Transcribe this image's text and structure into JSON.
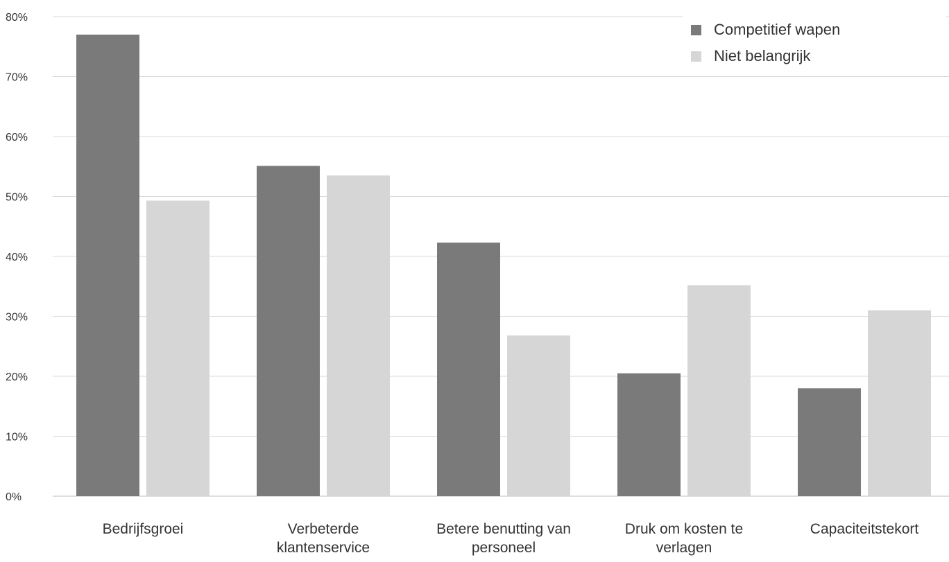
{
  "chart_data": {
    "type": "bar",
    "categories": [
      "Bedrijfsgroei",
      "Verbeterde klantenservice",
      "Betere benutting van personeel",
      "Druk om kosten te verlagen",
      "Capaciteitstekort"
    ],
    "category_lines": [
      [
        "Bedrijfsgroei"
      ],
      [
        "Verbeterde",
        "klantenservice"
      ],
      [
        "Betere benutting van",
        "personeel"
      ],
      [
        "Druk om kosten te",
        "verlagen"
      ],
      [
        "Capaciteitstekort"
      ]
    ],
    "series": [
      {
        "name": "Competitief wapen",
        "color": "#7a7a7a",
        "values": [
          77,
          55.1,
          42.3,
          20.5,
          18
        ]
      },
      {
        "name": "Niet belangrijk",
        "color": "#d6d6d6",
        "values": [
          49.3,
          53.5,
          26.8,
          35.2,
          31
        ]
      }
    ],
    "ylim": [
      0,
      80
    ],
    "y_ticks": [
      "0%",
      "10%",
      "20%",
      "30%",
      "40%",
      "50%",
      "60%",
      "70%",
      "80%"
    ],
    "y_tick_values": [
      0,
      10,
      20,
      30,
      40,
      50,
      60,
      70,
      80
    ],
    "grid": true,
    "legend_position": "top-right"
  }
}
